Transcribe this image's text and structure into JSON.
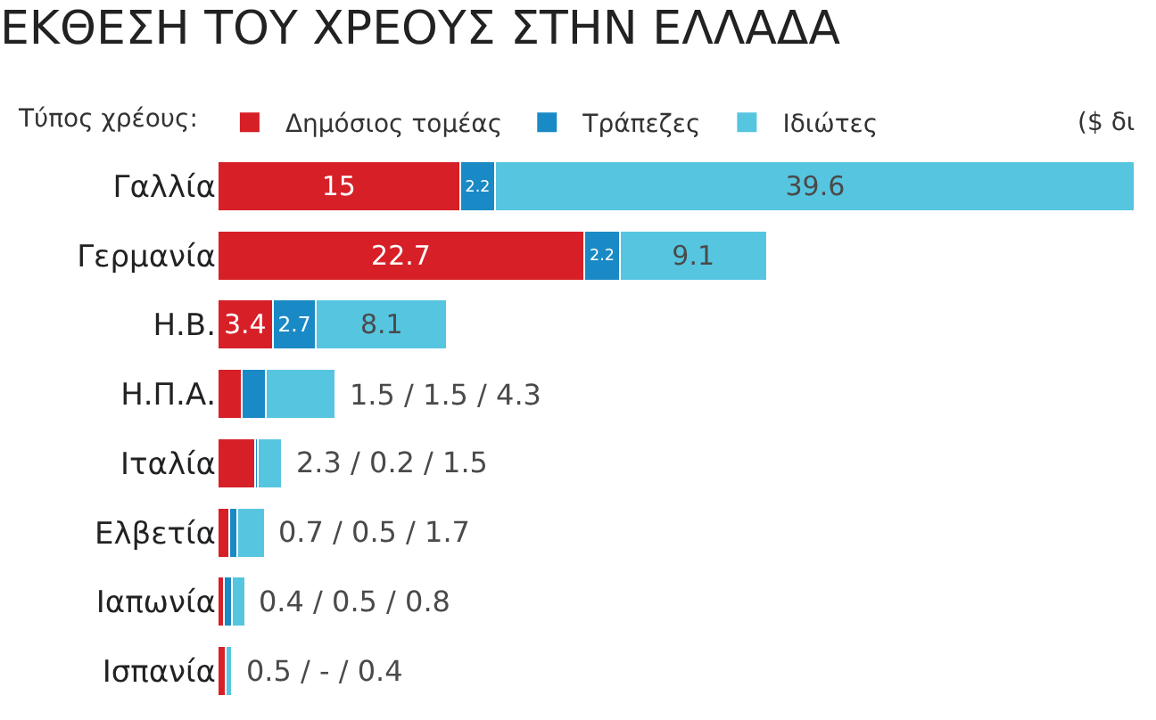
{
  "chart_data": {
    "type": "bar",
    "orientation": "horizontal",
    "stacked": true,
    "title": "ΕΚΘΕΣΗ ΤΟΥ ΧΡΕΟΥΣ ΣΤΗΝ ΕΛΛΑΔΑ",
    "legend_title": "Τύπος χρέους:",
    "legend": "top left",
    "categories": [
      "Γαλλία",
      "Γερμανία",
      "Η.Β.",
      "Η.Π.Α.",
      "Ιταλία",
      "Ελβετία",
      "Ιαπωνία",
      "Ισπανία"
    ],
    "series": [
      {
        "name": "Δημόσιος τομέας",
        "color": "#d71f27",
        "values": [
          15,
          22.7,
          3.4,
          1.5,
          2.3,
          0.7,
          0.4,
          0.5
        ],
        "value_labels": [
          "15",
          "22.7",
          "3.4",
          null,
          null,
          null,
          null,
          null
        ]
      },
      {
        "name": "Τράπεζες",
        "color": "#1a8ac6",
        "values": [
          2.2,
          2.2,
          2.7,
          1.5,
          0.2,
          0.5,
          0.5,
          null
        ],
        "value_labels": [
          "2.2",
          "2.2",
          "2.7",
          null,
          null,
          null,
          null,
          null
        ]
      },
      {
        "name": "Ιδιώτες",
        "color": "#56c5e0",
        "values": [
          39.6,
          9.1,
          8.1,
          4.3,
          1.5,
          1.7,
          0.8,
          0.4
        ],
        "value_labels": [
          "39.6",
          "9.1",
          "8.1",
          null,
          null,
          null,
          null,
          null
        ]
      }
    ],
    "xlim": [
      0,
      57
    ],
    "tick_labels": "y",
    "annotations": [
      "($ δι",
      {
        "text": "1.5 / 1.5 / 4.3",
        "x": 7.3,
        "y": "Η.Π.Α."
      },
      {
        "text": "2.3 / 0.2 / 1.5",
        "x": 4.0,
        "y": "Ιταλία"
      },
      {
        "text": "0.7 / 0.5 / 1.7",
        "x": 2.9,
        "y": "Ελβετία"
      },
      {
        "text": "0.4 / 0.5 / 0.8",
        "x": 1.7,
        "y": "Ιαπωνία"
      },
      {
        "text": "0.5 / - / 0.4",
        "x": 0.9,
        "y": "Ισπανία"
      }
    ]
  }
}
